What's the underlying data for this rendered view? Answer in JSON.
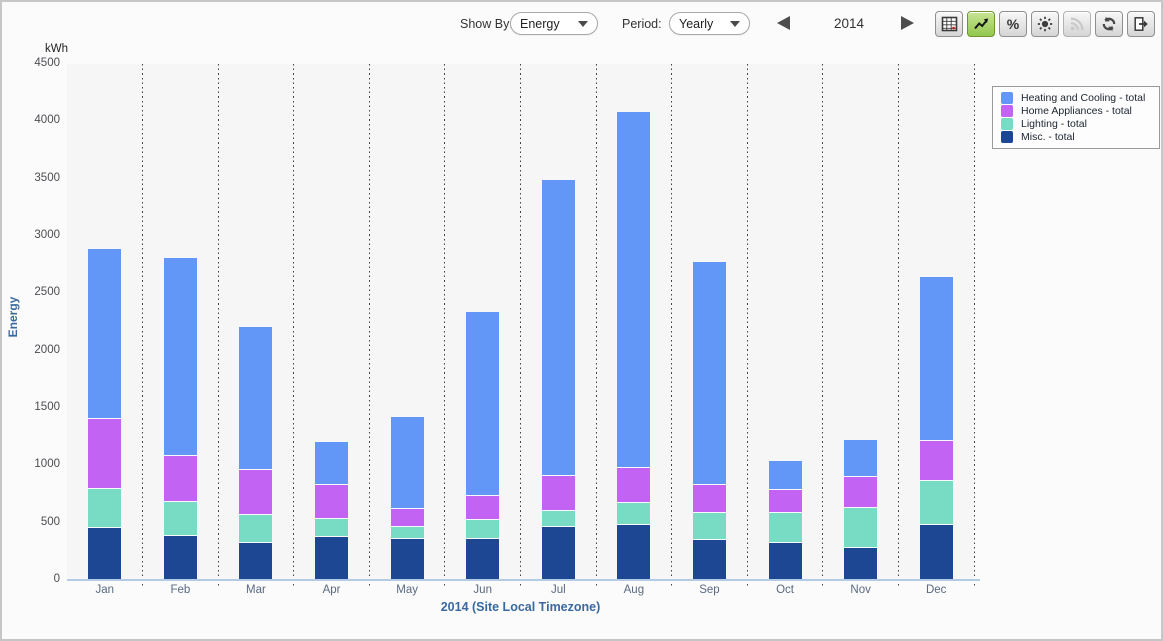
{
  "toolbar": {
    "show_by_label": "Show By:",
    "show_by_value": "Energy",
    "period_label": "Period:",
    "period_value": "Yearly",
    "year": "2014",
    "prev_icon": "previous-arrow",
    "next_icon": "next-arrow",
    "buttons": [
      {
        "icon": "table-icon",
        "active": false,
        "disabled": false
      },
      {
        "icon": "line-chart-icon",
        "active": true,
        "disabled": false
      },
      {
        "icon": "percent-icon",
        "active": false,
        "disabled": false
      },
      {
        "icon": "sun-icon",
        "active": false,
        "disabled": false
      },
      {
        "icon": "rss-icon",
        "active": false,
        "disabled": true
      },
      {
        "icon": "refresh-icon",
        "active": false,
        "disabled": false
      },
      {
        "icon": "export-icon",
        "active": false,
        "disabled": false
      }
    ]
  },
  "chart_data": {
    "type": "bar",
    "stacked": true,
    "unit": "kWh",
    "ylabel": "Energy",
    "xlabel": "2014 (Site Local Timezone)",
    "ylim": [
      0,
      4500
    ],
    "ytick_step": 500,
    "grid": "vertical-dotted",
    "legend_position": "top-right",
    "categories": [
      "Jan",
      "Feb",
      "Mar",
      "Apr",
      "May",
      "Jun",
      "Jul",
      "Aug",
      "Sep",
      "Oct",
      "Nov",
      "Dec"
    ],
    "series": [
      {
        "name": "Heating and Cooling - total",
        "color": "#6297f8",
        "values": [
          1480,
          1720,
          1240,
          360,
          790,
          1600,
          2570,
          3090,
          1930,
          250,
          310,
          1420
        ]
      },
      {
        "name": "Home Appliances - total",
        "color": "#c263f4",
        "values": [
          610,
          400,
          390,
          300,
          160,
          210,
          310,
          310,
          250,
          200,
          270,
          350
        ]
      },
      {
        "name": "Lighting - total",
        "color": "#77dcc3",
        "values": [
          340,
          300,
          250,
          160,
          100,
          160,
          140,
          190,
          230,
          260,
          350,
          380
        ]
      },
      {
        "name": "Misc. - total",
        "color": "#1d4792",
        "values": [
          460,
          390,
          330,
          380,
          370,
          370,
          470,
          490,
          360,
          330,
          290,
          490
        ]
      }
    ]
  }
}
